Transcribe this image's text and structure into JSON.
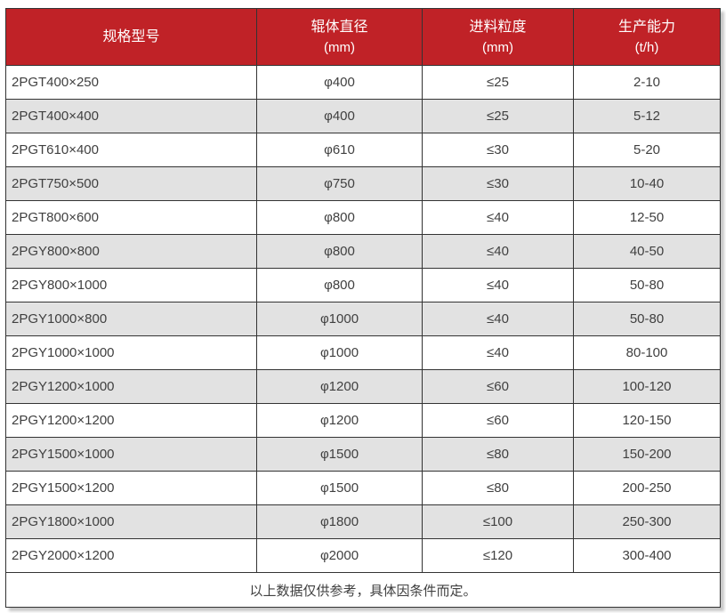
{
  "table": {
    "columns": [
      {
        "title": "规格型号",
        "unit": ""
      },
      {
        "title": "辊体直径",
        "unit": "(mm)"
      },
      {
        "title": "进料粒度",
        "unit": "(mm)"
      },
      {
        "title": "生产能力",
        "unit": "(t/h)"
      }
    ],
    "rows": [
      [
        "2PGT400×250",
        "φ400",
        "≤25",
        "2-10"
      ],
      [
        "2PGT400×400",
        "φ400",
        "≤25",
        "5-12"
      ],
      [
        "2PGT610×400",
        "φ610",
        "≤30",
        "5-20"
      ],
      [
        "2PGT750×500",
        "φ750",
        "≤30",
        "10-40"
      ],
      [
        "2PGT800×600",
        "φ800",
        "≤40",
        "12-50"
      ],
      [
        "2PGY800×800",
        "φ800",
        "≤40",
        "40-50"
      ],
      [
        "2PGY800×1000",
        "φ800",
        "≤40",
        "50-80"
      ],
      [
        "2PGY1000×800",
        "φ1000",
        "≤40",
        "50-80"
      ],
      [
        "2PGY1000×1000",
        "φ1000",
        "≤40",
        "80-100"
      ],
      [
        "2PGY1200×1000",
        "φ1200",
        "≤60",
        "100-120"
      ],
      [
        "2PGY1200×1200",
        "φ1200",
        "≤60",
        "120-150"
      ],
      [
        "2PGY1500×1000",
        "φ1500",
        "≤80",
        "150-200"
      ],
      [
        "2PGY1500×1200",
        "φ1500",
        "≤80",
        "200-250"
      ],
      [
        "2PGY1800×1000",
        "φ1800",
        "≤100",
        "250-300"
      ],
      [
        "2PGY2000×1200",
        "φ2000",
        "≤120",
        "300-400"
      ]
    ],
    "footer_note": "以上数据仅供参考，具体因条件而定。"
  },
  "colors": {
    "header_bg": "#C02227",
    "header_text": "#FFFFFF",
    "row_alt_bg": "#E2E2E2",
    "border": "#333333",
    "body_text": "#404040"
  }
}
